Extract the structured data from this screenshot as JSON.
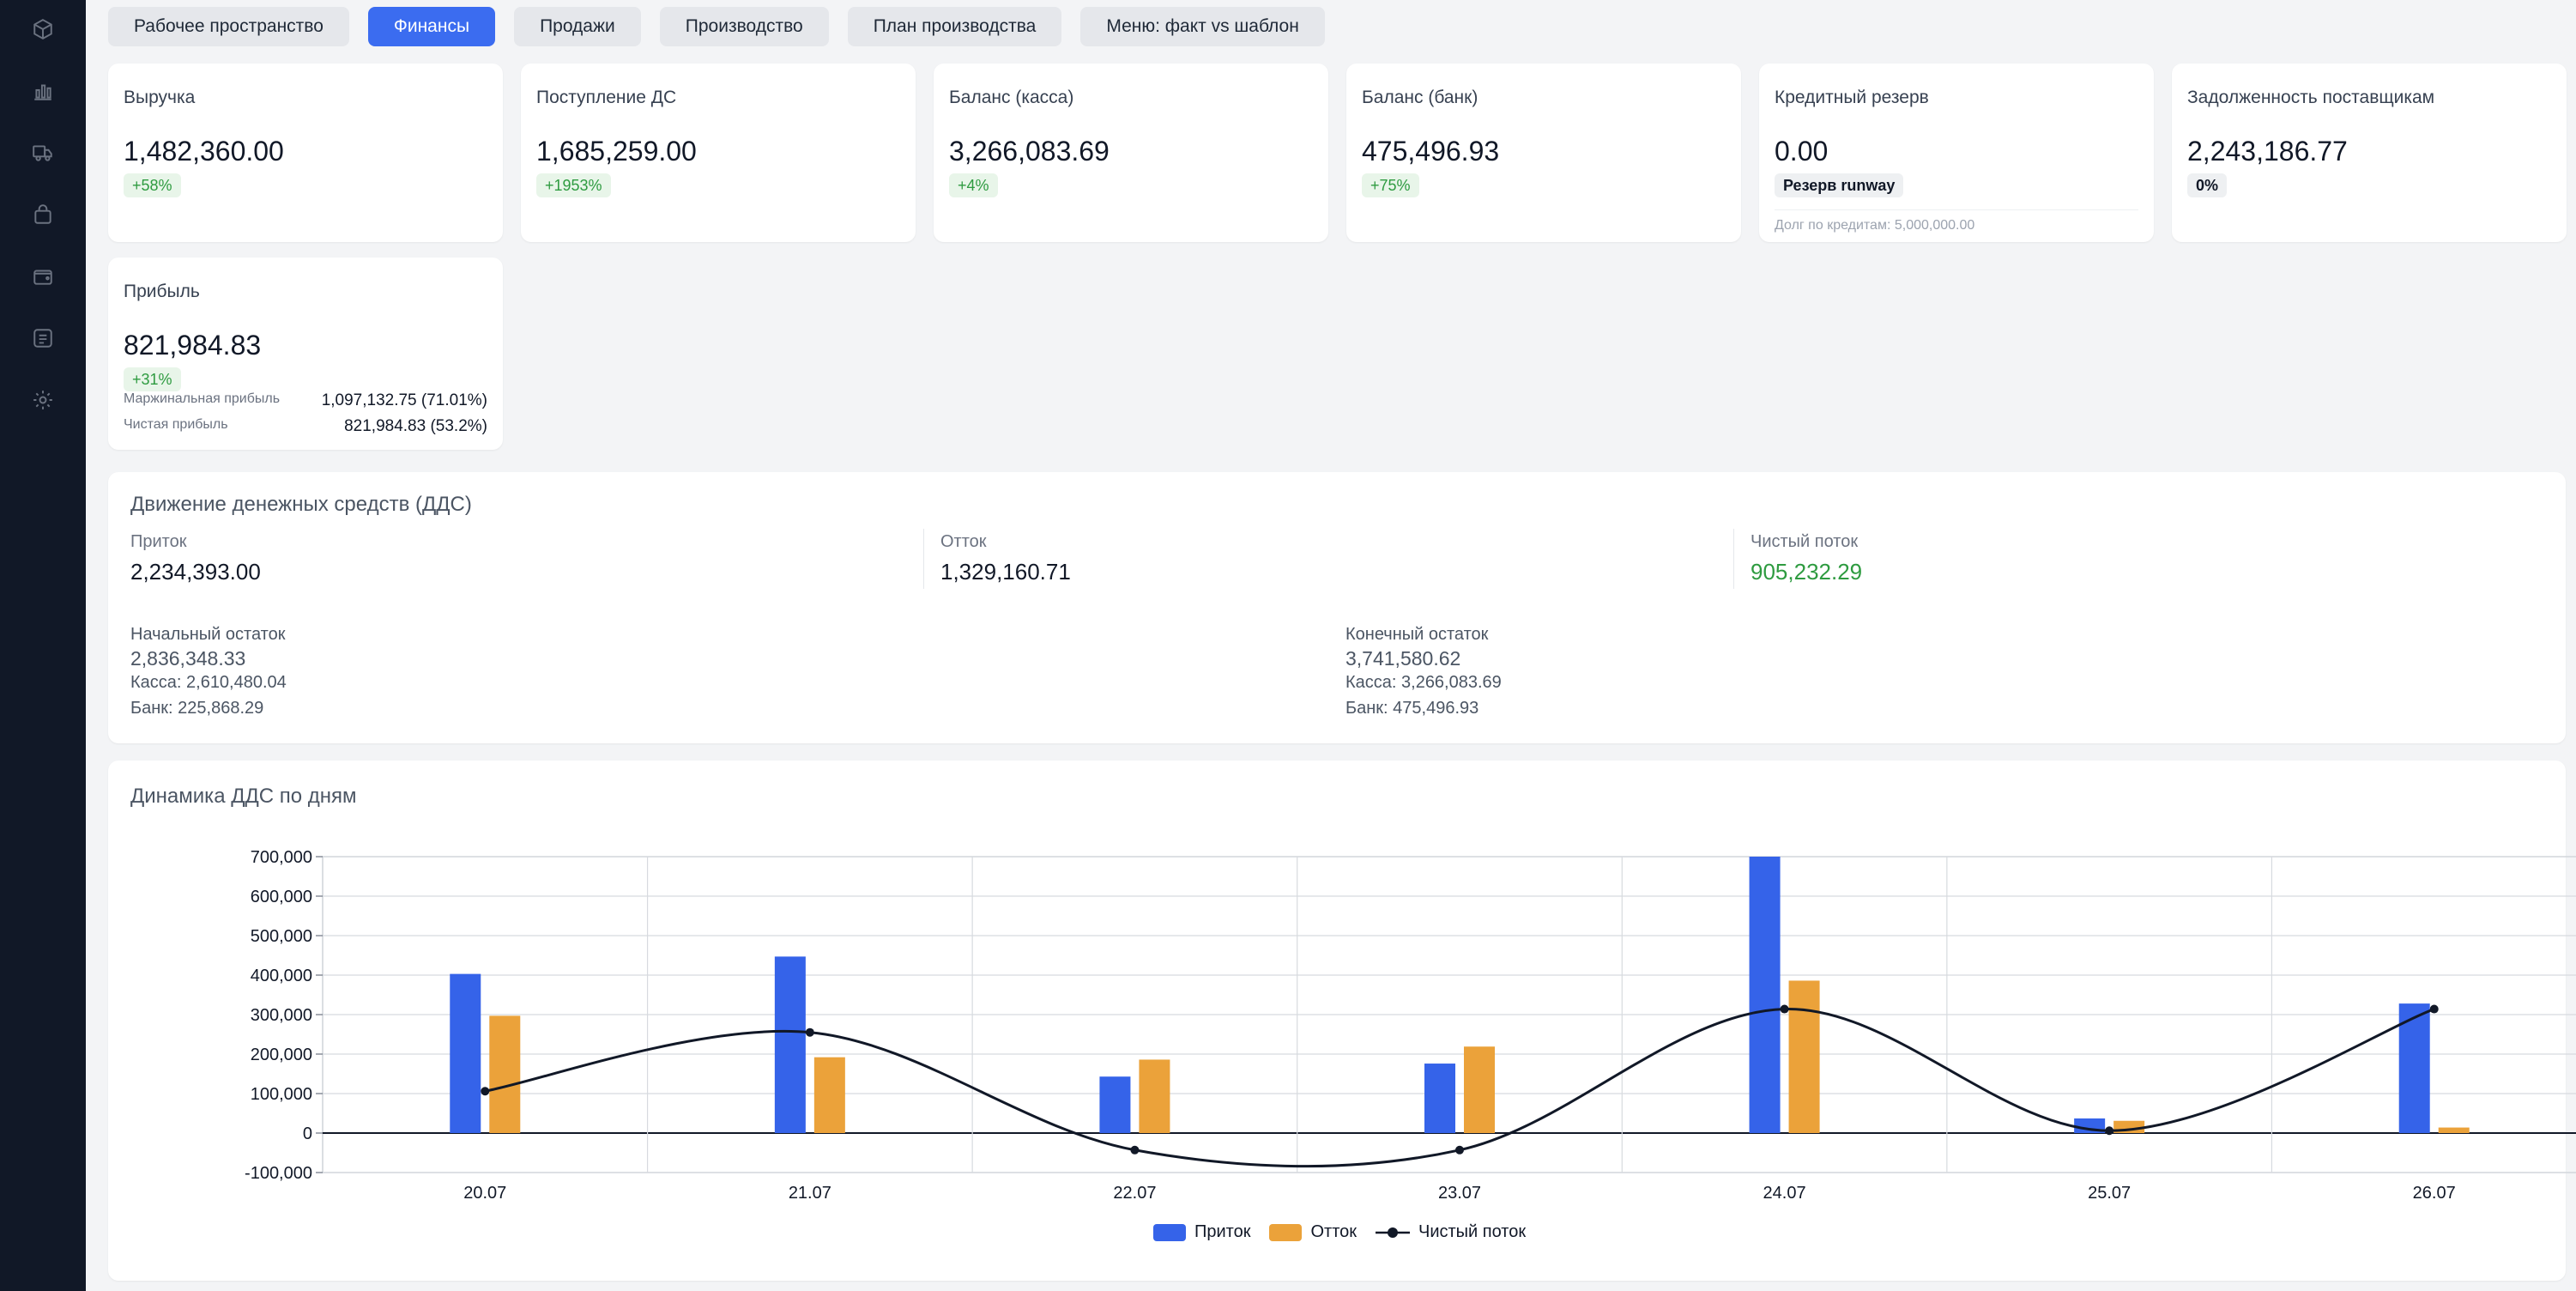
{
  "tabs": [
    {
      "label": "Рабочее пространство"
    },
    {
      "label": "Финансы"
    },
    {
      "label": "Продажи"
    },
    {
      "label": "Производство"
    },
    {
      "label": "План производства"
    },
    {
      "label": "Меню: факт vs шаблон"
    }
  ],
  "kpi": {
    "revenue": {
      "title": "Выручка",
      "value": "1,482,360.00",
      "badge": "+58%"
    },
    "receipts": {
      "title": "Поступление ДС",
      "value": "1,685,259.00",
      "badge": "+1953%"
    },
    "cash": {
      "title": "Баланс (касса)",
      "value": "3,266,083.69",
      "badge": "+4%"
    },
    "bank": {
      "title": "Баланс (банк)",
      "value": "475,496.93",
      "badge": "+75%"
    },
    "credit": {
      "title": "Кредитный резерв",
      "value": "0.00",
      "badge": "Резерв runway",
      "note": "Долг по кредитам: 5,000,000.00"
    },
    "payables": {
      "title": "Задолженность поставщикам",
      "value": "2,243,186.77",
      "badge": "0%"
    },
    "profit": {
      "title": "Прибыль",
      "value": "821,984.83",
      "badge": "+31%",
      "margin_label": "Маржинальная прибыль",
      "margin_value": "1,097,132.75 (71.01%)",
      "net_label": "Чистая прибыль",
      "net_value": "821,984.83 (53.2%)"
    }
  },
  "cashflow": {
    "title": "Движение денежных средств (ДДС)",
    "inflow_label": "Приток",
    "inflow_value": "2,234,393.00",
    "outflow_label": "Отток",
    "outflow_value": "1,329,160.71",
    "net_label": "Чистый поток",
    "net_value": "905,232.29",
    "opening_label": "Начальный остаток",
    "opening_value": "2,836,348.33",
    "opening_cash": "Касса: 2,610,480.04",
    "opening_bank": "Банк: 225,868.29",
    "closing_label": "Конечный остаток",
    "closing_value": "3,741,580.62",
    "closing_cash": "Касса: 3,266,083.69",
    "closing_bank": "Банк: 475,496.93"
  },
  "chart_section": {
    "title": "Динамика ДДС по дням"
  },
  "colors": {
    "inflow": "#3563e9",
    "outflow": "#eba23a",
    "net": "#111827",
    "active_tab": "#3b6cf0"
  },
  "sidebar_icons": [
    "box-icon",
    "bar-chart-icon",
    "truck-icon",
    "shopping-bag-icon",
    "wallet-icon",
    "list-icon",
    "gear-icon"
  ],
  "chart_data": {
    "type": "bar",
    "title": "Динамика ДДС по дням",
    "categories": [
      "20.07",
      "21.07",
      "22.07",
      "23.07",
      "24.07",
      "25.07",
      "26.07"
    ],
    "series": [
      {
        "name": "Приток",
        "type": "bar",
        "values": [
          403000,
          447000,
          143000,
          176000,
          700000,
          37000,
          328000
        ]
      },
      {
        "name": "Отток",
        "type": "bar",
        "values": [
          297000,
          192000,
          186000,
          219000,
          386000,
          31000,
          14000
        ]
      },
      {
        "name": "Чистый поток",
        "type": "line",
        "values": [
          106000,
          255000,
          -43000,
          -43000,
          314000,
          6000,
          314000
        ]
      }
    ],
    "y_ticks": [
      "-100,000",
      "0",
      "100,000",
      "200,000",
      "300,000",
      "400,000",
      "500,000",
      "600,000",
      "700,000"
    ],
    "ylim": [
      -100000,
      700000
    ],
    "grid": true,
    "legend": "bottom-center"
  }
}
